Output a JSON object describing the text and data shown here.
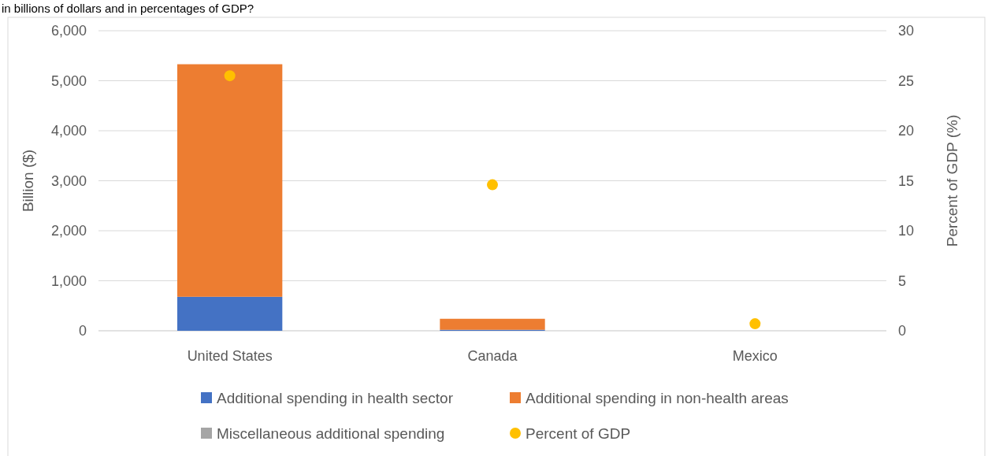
{
  "chart_data": {
    "type": "bar",
    "title": "in billions of dollars and in percentages of GDP?",
    "categories": [
      "United States",
      "Canada",
      "Mexico"
    ],
    "stacked": true,
    "series": [
      {
        "name": "Additional spending in health sector",
        "color": "#4472c4",
        "values": [
          680,
          20,
          0
        ]
      },
      {
        "name": "Additional spending in non-health areas",
        "color": "#ed7d31",
        "values": [
          4650,
          220,
          0
        ]
      },
      {
        "name": "Miscellaneous additional spending",
        "color": "#a5a5a5",
        "values": [
          0,
          0,
          0
        ]
      },
      {
        "name": "Percent of GDP",
        "type": "scatter",
        "axis": "y2",
        "color": "#ffc000",
        "marker": "circle",
        "values": [
          25.5,
          14.6,
          0.7
        ]
      }
    ],
    "ylabel": "Billion ($)",
    "y2label": "Percent of GDP (%)",
    "ylim": [
      0,
      6000
    ],
    "yticks": [
      {
        "value": 0,
        "label": "0"
      },
      {
        "value": 1000,
        "label": "1,000"
      },
      {
        "value": 2000,
        "label": "2,000"
      },
      {
        "value": 3000,
        "label": "3,000"
      },
      {
        "value": 4000,
        "label": "4,000"
      },
      {
        "value": 5000,
        "label": "5,000"
      },
      {
        "value": 6000,
        "label": "6,000"
      }
    ],
    "y2lim": [
      0,
      30
    ],
    "y2ticks": [
      0,
      5,
      10,
      15,
      20,
      25,
      30
    ],
    "grid": "y",
    "legend": "bottom"
  }
}
